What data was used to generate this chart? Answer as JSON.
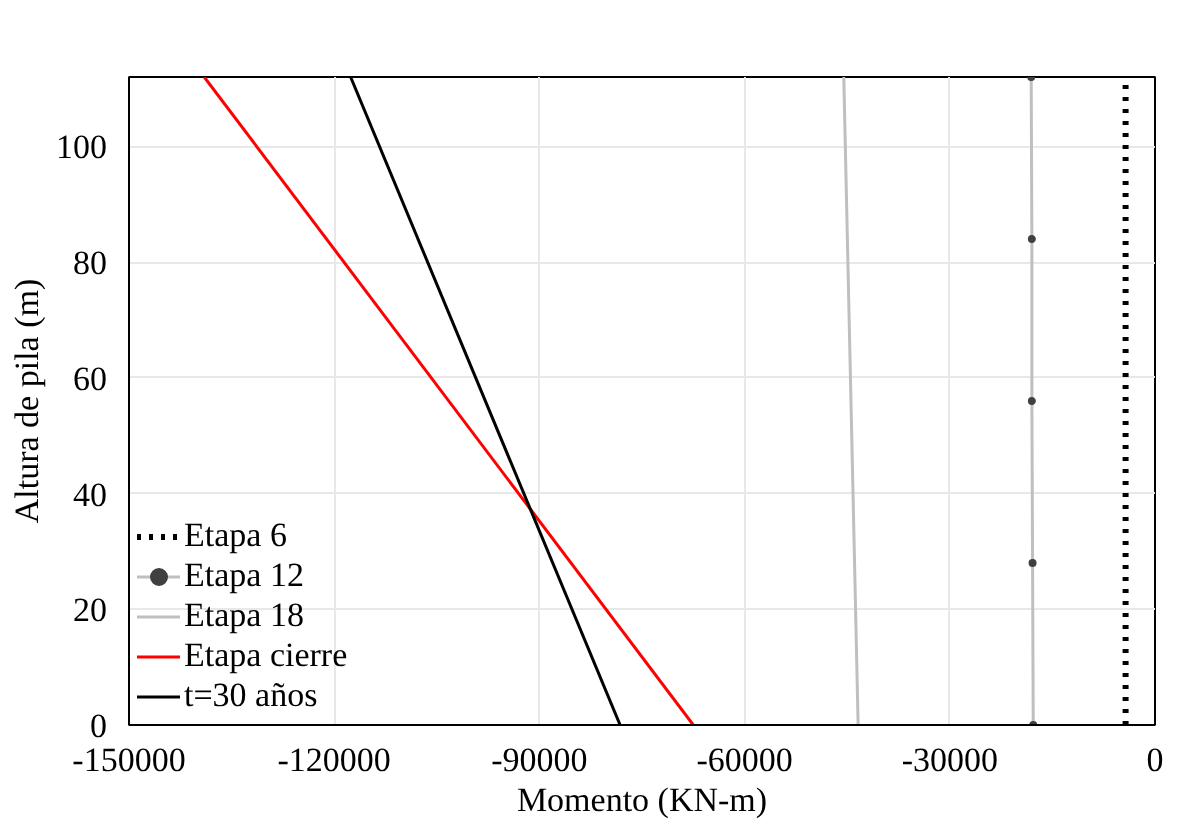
{
  "chart_data": {
    "type": "line",
    "xlabel": "Momento (KN-m)",
    "ylabel": "Altura de pila (m)",
    "xlim": [
      -150000,
      0
    ],
    "xticks": [
      -150000,
      -120000,
      -90000,
      -60000,
      -30000,
      0
    ],
    "ylim": [
      0,
      112
    ],
    "yticks": [
      0,
      20,
      40,
      60,
      80,
      100
    ],
    "grid": true,
    "legend": "bottom left",
    "series": [
      {
        "name": "Etapa 6",
        "color": "#000000",
        "line_style": "dotted",
        "marker": "none",
        "x": [
          -4300,
          -4300
        ],
        "values": [
          0,
          112
        ]
      },
      {
        "name": "Etapa 12",
        "color": "#bfbfbf",
        "line_style": "solid",
        "marker": "circle",
        "x": [
          -17800,
          -17900,
          -18000,
          -18000,
          -18100
        ],
        "values": [
          0,
          28,
          56,
          84,
          112
        ]
      },
      {
        "name": "Etapa 18",
        "color": "#bfbfbf",
        "line_style": "solid",
        "marker": "none",
        "x": [
          -43400,
          -45500
        ],
        "values": [
          0,
          112
        ]
      },
      {
        "name": "Etapa cierre",
        "color": "#ff0000",
        "line_style": "solid",
        "marker": "none",
        "x": [
          -67500,
          -139000
        ],
        "values": [
          0,
          112
        ]
      },
      {
        "name": "t=30 años",
        "color": "#000000",
        "line_style": "solid",
        "marker": "none",
        "x": [
          -78200,
          -117600
        ],
        "values": [
          0,
          112
        ]
      }
    ]
  }
}
